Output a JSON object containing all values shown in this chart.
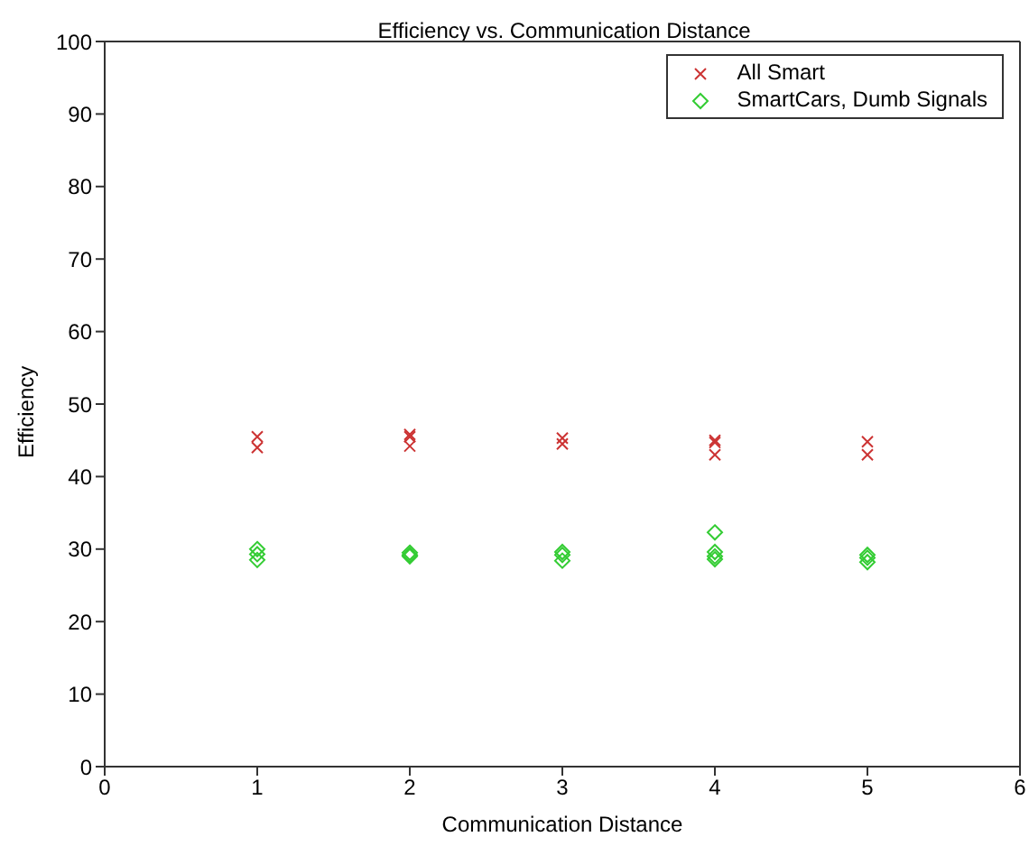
{
  "chart_data": {
    "type": "scatter",
    "title": "Efficiency vs. Communication Distance",
    "xlabel": "Communication Distance",
    "ylabel": "Efficiency",
    "xlim": [
      0,
      6
    ],
    "xticks": [
      0,
      1,
      2,
      3,
      4,
      5,
      6
    ],
    "ylim": [
      0,
      100
    ],
    "yticks": [
      0,
      10,
      20,
      30,
      40,
      50,
      60,
      70,
      80,
      90,
      100
    ],
    "grid": false,
    "legend": "top right",
    "series": [
      {
        "name": "All Smart",
        "color": "#cc3333",
        "marker": "cross",
        "x": [
          1,
          1,
          2,
          2,
          2,
          3,
          3,
          4,
          4,
          4,
          5,
          5
        ],
        "values": [
          45.5,
          44,
          45.8,
          45.5,
          44.2,
          45.3,
          44.5,
          45,
          44.7,
          43,
          44.8,
          43
        ]
      },
      {
        "name": "SmartCars, Dumb Signals",
        "color": "#33cc33",
        "marker": "diamond",
        "x": [
          1,
          1,
          1,
          2,
          2,
          2,
          3,
          3,
          3,
          4,
          4,
          4,
          4,
          5,
          5,
          5
        ],
        "values": [
          30,
          29.3,
          28.5,
          29.5,
          29.2,
          29,
          29.6,
          29.2,
          28.4,
          32.3,
          29.6,
          29,
          28.6,
          29.2,
          28.8,
          28.2
        ]
      }
    ]
  }
}
